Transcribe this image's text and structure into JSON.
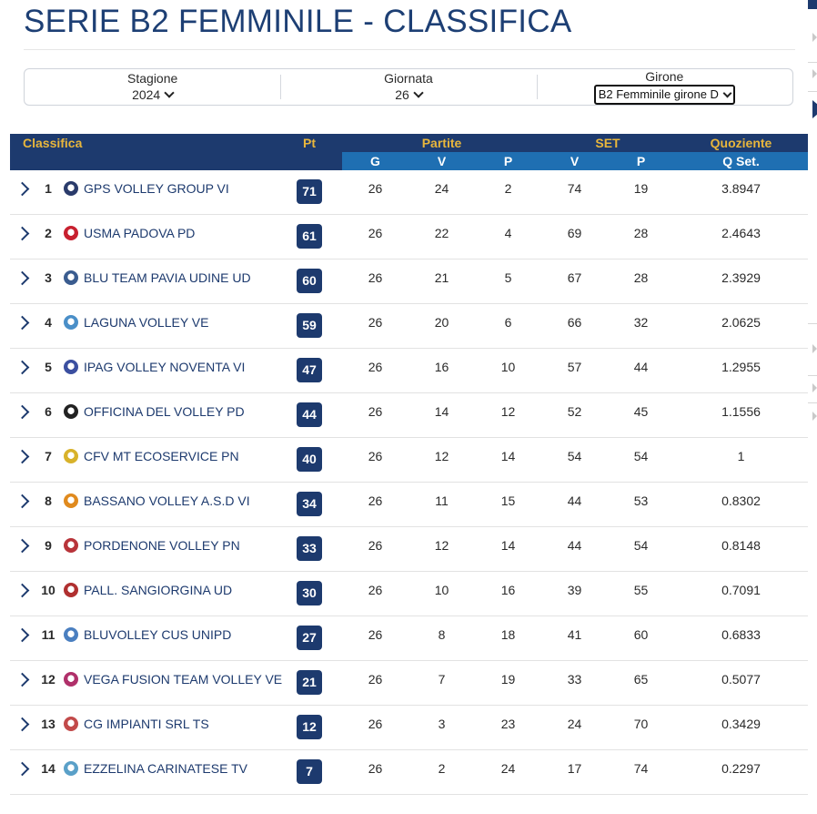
{
  "page": {
    "title": "SERIE B2 FEMMINILE - CLASSIFICA"
  },
  "filters": [
    {
      "label": "Stagione",
      "value": "2024"
    },
    {
      "label": "Giornata",
      "value": "26"
    },
    {
      "label": "Girone",
      "value": "B2 Femminile girone D"
    }
  ],
  "table": {
    "header": {
      "classifica": "Classifica",
      "pt": "Pt",
      "partite": "Partite",
      "set": "SET",
      "quoziente": "Quoziente",
      "g": "G",
      "v": "V",
      "p": "P",
      "set_v": "V",
      "set_p": "P",
      "qset": "Q Set."
    },
    "rows": [
      {
        "pos": "1",
        "team": "GPS VOLLEY GROUP VI",
        "pts": "71",
        "g": "26",
        "v": "24",
        "p": "2",
        "sv": "74",
        "sp": "19",
        "q": "3.8947",
        "logo_color": "#2a3b6b"
      },
      {
        "pos": "2",
        "team": "USMA PADOVA PD",
        "pts": "61",
        "g": "26",
        "v": "22",
        "p": "4",
        "sv": "69",
        "sp": "28",
        "q": "2.4643",
        "logo_color": "#c8202f"
      },
      {
        "pos": "3",
        "team": "BLU TEAM PAVIA UDINE UD",
        "pts": "60",
        "g": "26",
        "v": "21",
        "p": "5",
        "sv": "67",
        "sp": "28",
        "q": "2.3929",
        "logo_color": "#3a5c8f"
      },
      {
        "pos": "4",
        "team": "LAGUNA VOLLEY VE",
        "pts": "59",
        "g": "26",
        "v": "20",
        "p": "6",
        "sv": "66",
        "sp": "32",
        "q": "2.0625",
        "logo_color": "#4a8fc8"
      },
      {
        "pos": "5",
        "team": "IPAG VOLLEY NOVENTA VI",
        "pts": "47",
        "g": "26",
        "v": "16",
        "p": "10",
        "sv": "57",
        "sp": "44",
        "q": "1.2955",
        "logo_color": "#3b4fa0"
      },
      {
        "pos": "6",
        "team": "OFFICINA DEL VOLLEY PD",
        "pts": "44",
        "g": "26",
        "v": "14",
        "p": "12",
        "sv": "52",
        "sp": "45",
        "q": "1.1556",
        "logo_color": "#222222"
      },
      {
        "pos": "7",
        "team": "CFV MT ECOSERVICE PN",
        "pts": "40",
        "g": "26",
        "v": "12",
        "p": "14",
        "sv": "54",
        "sp": "54",
        "q": "1",
        "logo_color": "#d8b22a"
      },
      {
        "pos": "8",
        "team": "BASSANO VOLLEY A.S.D VI",
        "pts": "34",
        "g": "26",
        "v": "11",
        "p": "15",
        "sv": "44",
        "sp": "53",
        "q": "0.8302",
        "logo_color": "#e08a1e"
      },
      {
        "pos": "9",
        "team": "PORDENONE VOLLEY PN",
        "pts": "33",
        "g": "26",
        "v": "12",
        "p": "14",
        "sv": "44",
        "sp": "54",
        "q": "0.8148",
        "logo_color": "#b8343a"
      },
      {
        "pos": "10",
        "team": "PALL. SANGIORGINA UD",
        "pts": "30",
        "g": "26",
        "v": "10",
        "p": "16",
        "sv": "39",
        "sp": "55",
        "q": "0.7091",
        "logo_color": "#b03030"
      },
      {
        "pos": "11",
        "team": "BLUVOLLEY CUS UNIPD",
        "pts": "27",
        "g": "26",
        "v": "8",
        "p": "18",
        "sv": "41",
        "sp": "60",
        "q": "0.6833",
        "logo_color": "#4a7fc0"
      },
      {
        "pos": "12",
        "team": "VEGA FUSION TEAM VOLLEY VE",
        "pts": "21",
        "g": "26",
        "v": "7",
        "p": "19",
        "sv": "33",
        "sp": "65",
        "q": "0.5077",
        "logo_color": "#b0306a"
      },
      {
        "pos": "13",
        "team": "CG IMPIANTI SRL TS",
        "pts": "12",
        "g": "26",
        "v": "3",
        "p": "23",
        "sv": "24",
        "sp": "70",
        "q": "0.3429",
        "logo_color": "#c24a4a"
      },
      {
        "pos": "14",
        "team": "EZZELINA CARINATESE TV",
        "pts": "7",
        "g": "26",
        "v": "2",
        "p": "24",
        "sv": "17",
        "sp": "74",
        "q": "0.2297",
        "logo_color": "#5aa0c8"
      }
    ]
  }
}
